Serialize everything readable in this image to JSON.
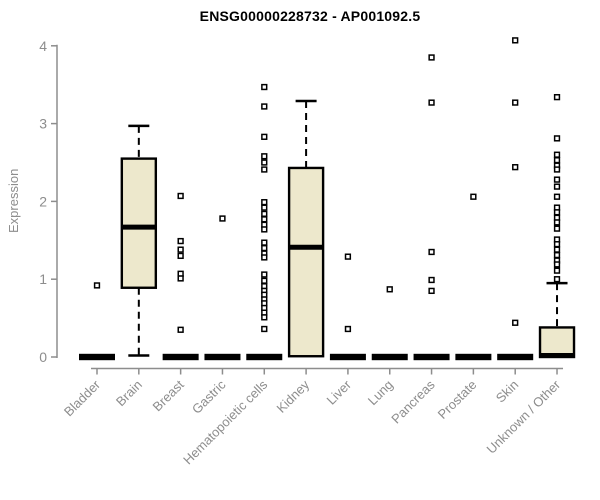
{
  "chart_data": {
    "type": "boxplot",
    "title": "ENSG00000228732 - AP001092.5",
    "ylabel": "Expression",
    "xlabel": "",
    "ylim": [
      0,
      4
    ],
    "yticks": [
      0,
      1,
      2,
      3,
      4
    ],
    "grid": false,
    "legend": false,
    "categories": [
      "Bladder",
      "Brain",
      "Breast",
      "Gastric",
      "Hematopoietic cells",
      "Kidney",
      "Liver",
      "Lung",
      "Pancreas",
      "Prostate",
      "Skin",
      "Unknown / Other"
    ],
    "boxes": [
      {
        "category": "Bladder",
        "q1": 0,
        "median": 0,
        "q3": 0,
        "whisker_low": 0,
        "whisker_high": 0,
        "outliers": [
          0.92
        ]
      },
      {
        "category": "Brain",
        "q1": 0.89,
        "median": 1.67,
        "q3": 2.55,
        "whisker_low": 0.02,
        "whisker_high": 2.97,
        "outliers": []
      },
      {
        "category": "Breast",
        "q1": 0,
        "median": 0,
        "q3": 0,
        "whisker_low": 0,
        "whisker_high": 0,
        "outliers": [
          2.07,
          1.49,
          1.38,
          1.3,
          1.07,
          1.01,
          0.35
        ]
      },
      {
        "category": "Gastric",
        "q1": 0,
        "median": 0,
        "q3": 0,
        "whisker_low": 0,
        "whisker_high": 0,
        "outliers": [
          1.78
        ]
      },
      {
        "category": "Hematopoietic cells",
        "q1": 0,
        "median": 0,
        "q3": 0,
        "whisker_low": 0,
        "whisker_high": 0,
        "outliers": [
          3.47,
          3.22,
          2.83,
          2.58,
          2.5,
          2.41,
          1.99,
          1.92,
          1.84,
          1.77,
          1.7,
          1.64,
          1.47,
          1.4,
          1.33,
          1.28,
          1.06,
          0.98,
          0.91,
          0.85,
          0.8,
          0.74,
          0.69,
          0.63,
          0.57,
          0.51,
          0.36
        ]
      },
      {
        "category": "Kidney",
        "q1": 0.01,
        "median": 1.41,
        "q3": 2.43,
        "whisker_low": 0.01,
        "whisker_high": 3.29,
        "outliers": []
      },
      {
        "category": "Liver",
        "q1": 0,
        "median": 0,
        "q3": 0,
        "whisker_low": 0,
        "whisker_high": 0,
        "outliers": [
          1.29,
          0.36
        ]
      },
      {
        "category": "Lung",
        "q1": 0,
        "median": 0,
        "q3": 0,
        "whisker_low": 0,
        "whisker_high": 0,
        "outliers": [
          0.87
        ]
      },
      {
        "category": "Pancreas",
        "q1": 0,
        "median": 0,
        "q3": 0,
        "whisker_low": 0,
        "whisker_high": 0,
        "outliers": [
          3.85,
          3.27,
          1.35,
          0.99,
          0.85
        ]
      },
      {
        "category": "Prostate",
        "q1": 0,
        "median": 0,
        "q3": 0,
        "whisker_low": 0,
        "whisker_high": 0,
        "outliers": [
          2.06
        ]
      },
      {
        "category": "Skin",
        "q1": 0,
        "median": 0,
        "q3": 0,
        "whisker_low": 0,
        "whisker_high": 0,
        "outliers": [
          4.07,
          3.27,
          2.44,
          0.44
        ]
      },
      {
        "category": "Unknown / Other",
        "q1": 0,
        "median": 0.02,
        "q3": 0.38,
        "whisker_low": 0,
        "whisker_high": 0.95,
        "outliers": [
          3.34,
          2.81,
          2.6,
          2.53,
          2.46,
          2.41,
          2.28,
          2.19,
          2.06,
          1.92,
          1.86,
          1.79,
          1.73,
          1.65,
          1.51,
          1.45,
          1.38,
          1.31,
          1.24,
          1.19,
          1.11,
          1.0
        ]
      }
    ],
    "colors": {
      "box_fill": "#EDE8CC",
      "box_stroke": "#000000",
      "median": "#000000",
      "outlier_stroke": "#000000",
      "outlier_fill": "#FFFFFF",
      "axis": "#8D8D8D",
      "title": "#000000",
      "background": "#FFFFFF"
    }
  }
}
